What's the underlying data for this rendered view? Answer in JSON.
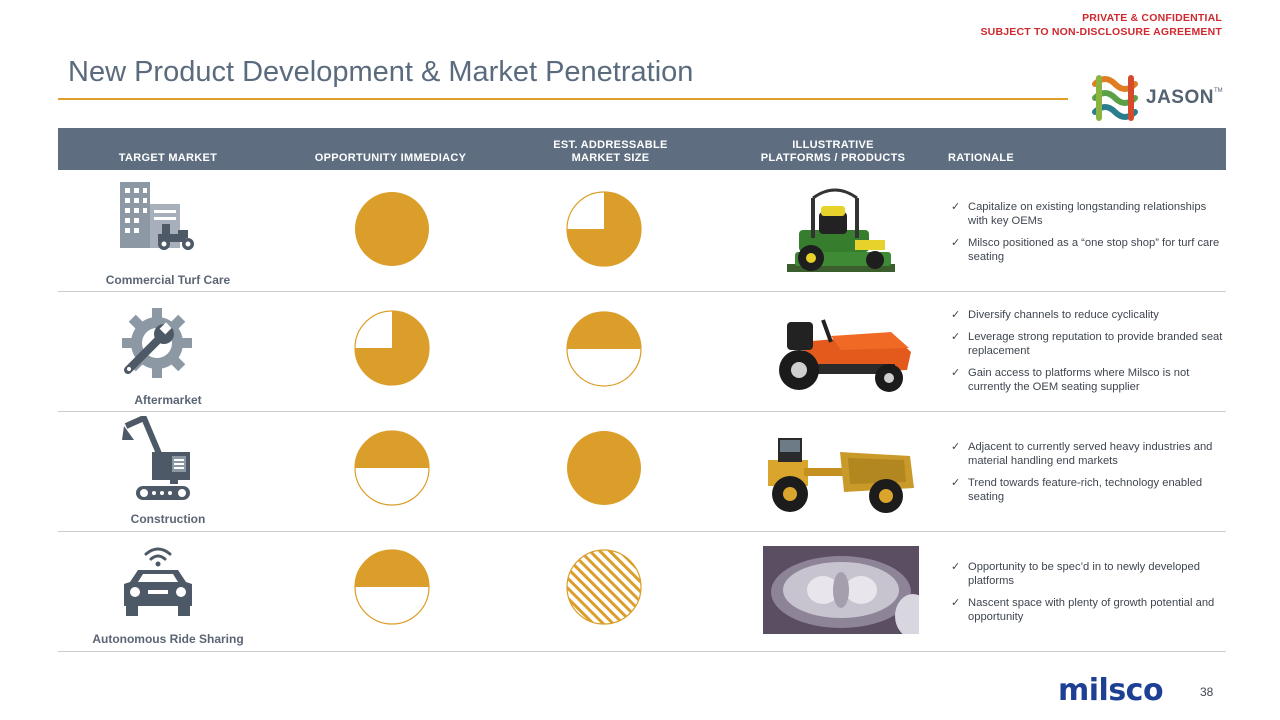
{
  "confidential": {
    "line1": "PRIVATE & CONFIDENTIAL",
    "line2": "SUBJECT TO NON-DISCLOSURE  AGREEMENT"
  },
  "title": "New Product Development  & Market Penetration",
  "logo": {
    "text": "JASON"
  },
  "table": {
    "headers": {
      "target_market": "TARGET  MARKET",
      "opportunity": "OPPORTUNITY  IMMEDIACY",
      "est_line1": "EST. ADDRESSABLE",
      "est_line2": "MARKET  SIZE",
      "ill_line1": "ILLUSTRATIVE",
      "ill_line2": "PLATFORMS  / PRODUCTS",
      "rationale": "RATIONALE"
    },
    "rows": [
      {
        "market": "Commercial Turf Care",
        "icon": "building-mower-icon",
        "opportunity_immediacy": 1.0,
        "market_size": 0.75,
        "product": "zero-turn commercial mower",
        "rationale": [
          "Capitalize on existing longstanding relationships with key OEMs",
          "Milsco positioned as a “one stop shop” for turf care seating"
        ]
      },
      {
        "market": "Aftermarket",
        "icon": "gear-wrench-icon",
        "opportunity_immediacy": 0.75,
        "market_size": 0.5,
        "product": "riding lawn tractor",
        "rationale": [
          "Diversify channels to reduce cyclicality",
          "Leverage strong reputation to provide branded seat replacement",
          "Gain access to platforms where Milsco is not currently the OEM  seating supplier"
        ]
      },
      {
        "market": "Construction",
        "icon": "excavator-icon",
        "opportunity_immediacy": 0.5,
        "market_size": 1.0,
        "product": "wheel tractor scraper",
        "rationale": [
          "Adjacent to currently served heavy industries and material handling end markets",
          "Trend towards feature-rich, technology enabled seating"
        ]
      },
      {
        "market": "Autonomous Ride  Sharing",
        "icon": "connected-car-icon",
        "opportunity_immediacy": 0.5,
        "market_size": "undetermined (hatched)",
        "product": "autonomous vehicle interior concept",
        "rationale": [
          "Opportunity to  be spec’d in to newly developed platforms",
          "Nascent space with plenty of growth potential and opportunity"
        ]
      }
    ]
  },
  "footer": {
    "brand": "milsco",
    "page_number": "38"
  },
  "colors": {
    "accent": "#e09f2a",
    "ball": "#dc9e2a",
    "header_bg": "#5e6e80",
    "title": "#5b6b7e",
    "confidential": "#d0282e",
    "brand_blue": "#1d3f94"
  }
}
